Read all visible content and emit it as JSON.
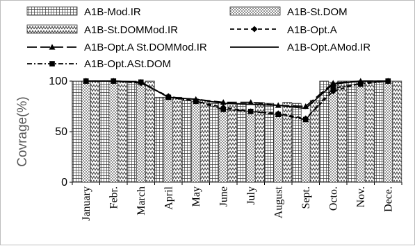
{
  "chart_data": {
    "type": "bar",
    "title": "",
    "xlabel": "",
    "ylabel": "Covrage(%)",
    "ylim": [
      0,
      100
    ],
    "yticks": [
      "0",
      "50",
      "100"
    ],
    "grid": false,
    "legend_position": "top",
    "categories": [
      "January",
      "Febr.",
      "March",
      "April",
      "May",
      "June",
      "July",
      "August",
      "Sept.",
      "Octo.",
      "Nov.",
      "Dece."
    ],
    "bar_series": [
      {
        "name": "A1B-Mod.IR",
        "pattern": "grid",
        "values": [
          100,
          100,
          100,
          84,
          81,
          78,
          78,
          78,
          78,
          100,
          100,
          100
        ]
      },
      {
        "name": "A1B-St.DOM",
        "pattern": "dots",
        "values": [
          100,
          100,
          99,
          84,
          80,
          72,
          70,
          67,
          62,
          99,
          100,
          100
        ]
      },
      {
        "name": "A1B-St.DOMMod.IR",
        "pattern": "zigzag",
        "values": [
          100,
          100,
          100,
          84,
          81,
          78,
          79,
          79,
          81,
          100,
          100,
          100
        ]
      }
    ],
    "line_series": [
      {
        "name": "A1B-Opt.A",
        "style": "dashed",
        "marker": "diamond",
        "values": [
          100,
          100,
          98,
          85,
          80,
          74,
          70,
          68,
          63,
          90,
          98,
          100
        ]
      },
      {
        "name": "A1B-Opt.A St.DOMMod.IR",
        "style": "long-dash",
        "marker": "triangle",
        "values": [
          100,
          100,
          99,
          84,
          82,
          79,
          79,
          76,
          75,
          98,
          100,
          100
        ]
      },
      {
        "name": "A1B-Opt.AMod.IR",
        "style": "solid",
        "marker": "none",
        "values": [
          100,
          100,
          99,
          84,
          82,
          78,
          77,
          76,
          73,
          97,
          100,
          100
        ]
      },
      {
        "name": "A1B-Opt.ASt.DOM",
        "style": "dash-dot",
        "marker": "square",
        "values": [
          100,
          100,
          99,
          84,
          80,
          72,
          70,
          67,
          62,
          93,
          97,
          100
        ]
      }
    ]
  }
}
